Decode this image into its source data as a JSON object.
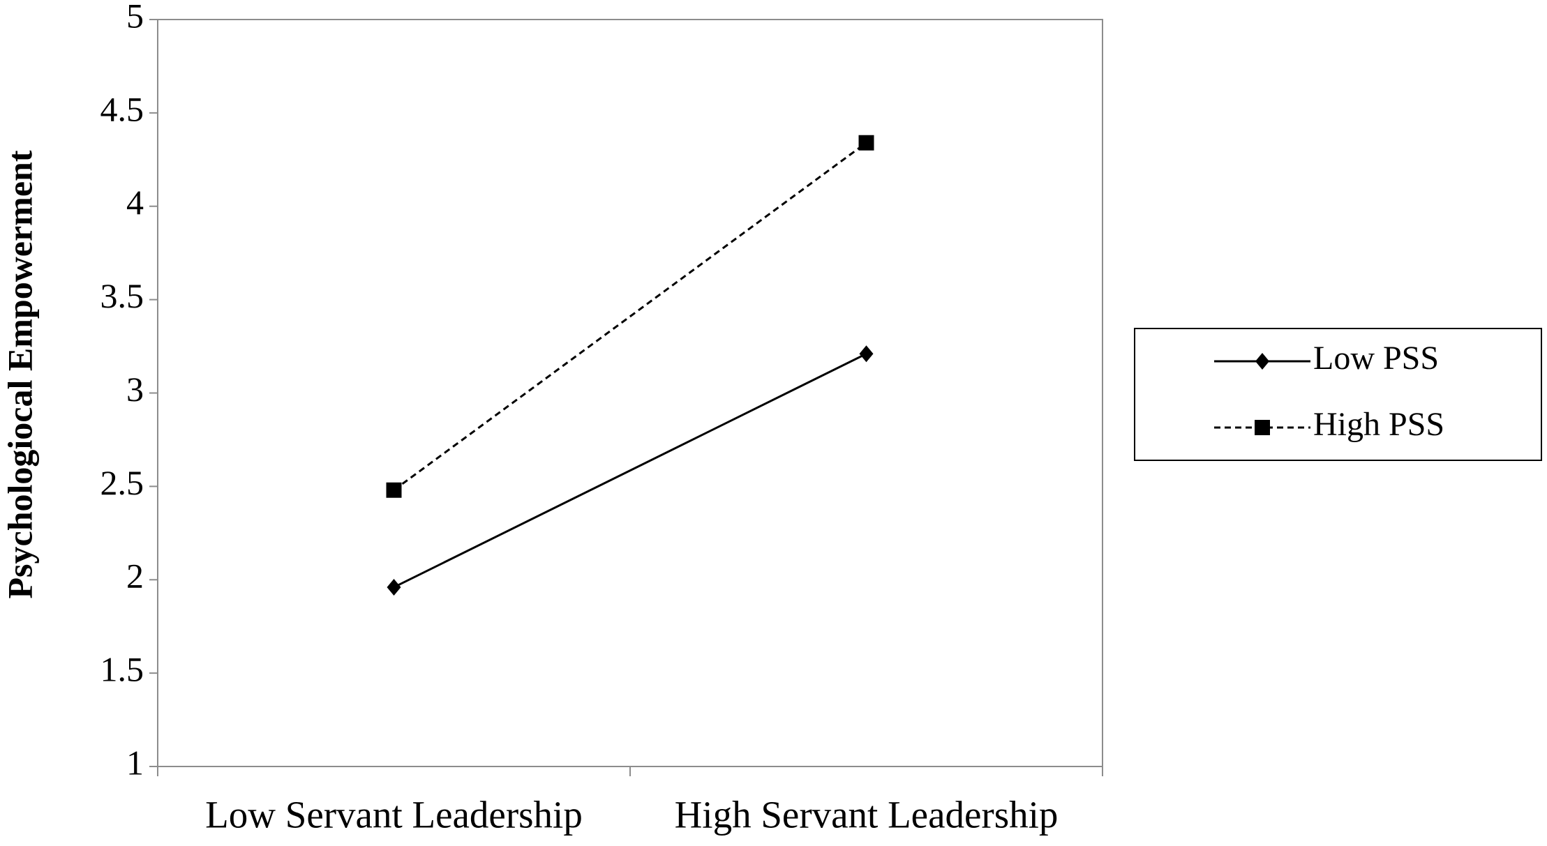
{
  "chart_data": {
    "type": "line",
    "y_label": "Psychologiocal Empowerment",
    "categories": [
      "Low Servant Leadership",
      "High Servant Leadership"
    ],
    "series": [
      {
        "name": "Low PSS",
        "color": "#000000",
        "line_style": "solid",
        "marker": "diamond",
        "values": [
          1.96,
          3.21
        ]
      },
      {
        "name": "High PSS",
        "color": "#000000",
        "line_style": "dashed",
        "marker": "square",
        "values": [
          2.48,
          4.34
        ]
      }
    ],
    "ylim": [
      1,
      5
    ],
    "yticks": [
      1,
      1.5,
      2,
      2.5,
      3,
      3.5,
      4,
      4.5,
      5
    ],
    "grid": false,
    "legend": "right"
  }
}
